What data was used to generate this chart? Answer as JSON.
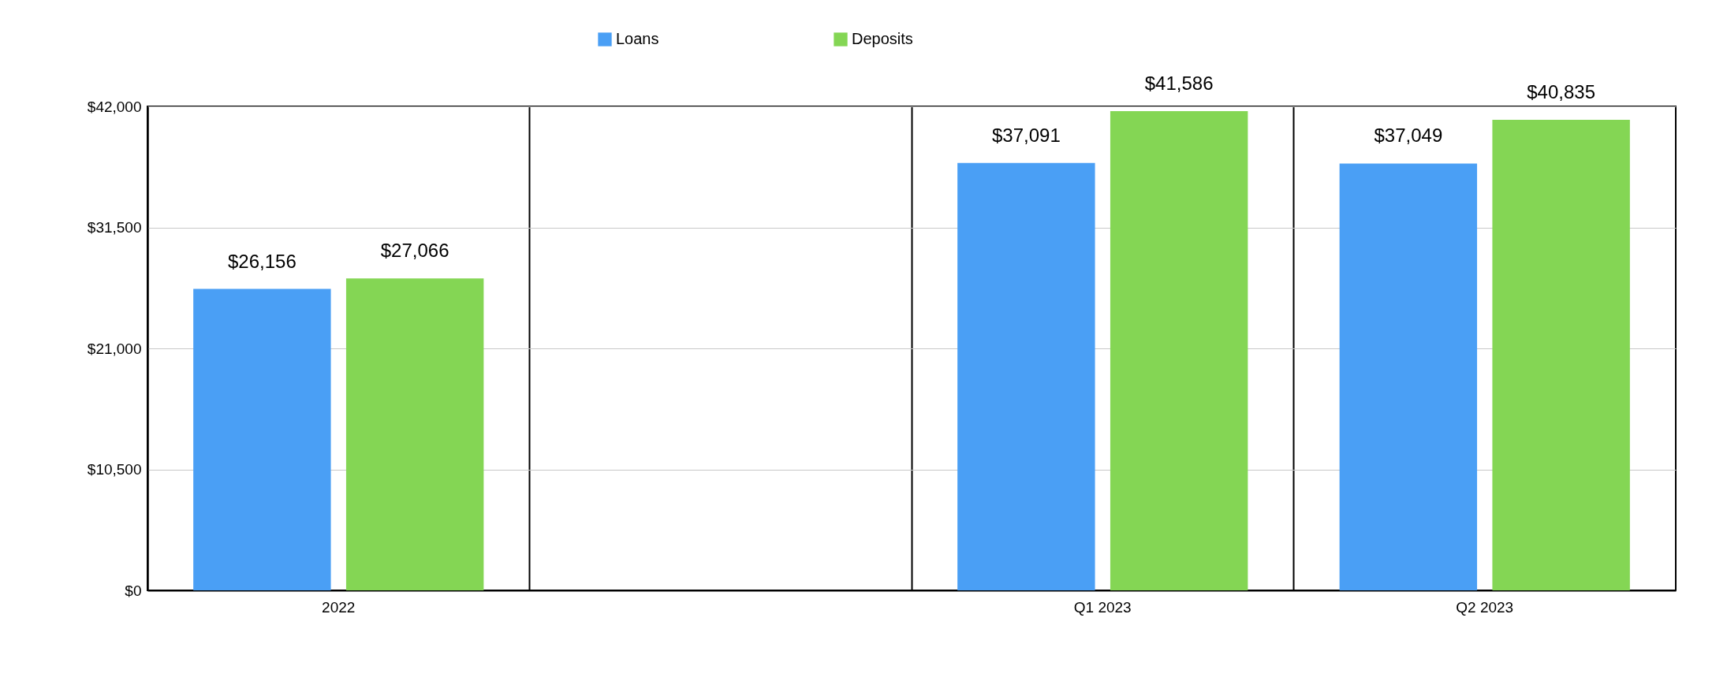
{
  "chart_data": {
    "type": "bar",
    "categories": [
      "2022",
      null,
      "Q1 2023",
      "Q2 2023"
    ],
    "series": [
      {
        "name": "Loans",
        "color": "#4a9ff5",
        "values": [
          26156,
          null,
          37091,
          37049
        ],
        "value_labels": [
          "$26,156",
          null,
          "$37,091",
          "$37,049"
        ]
      },
      {
        "name": "Deposits",
        "color": "#84d654",
        "values": [
          27066,
          null,
          41586,
          40835
        ],
        "value_labels": [
          "$27,066",
          null,
          "$41,586",
          "$40,835"
        ]
      }
    ],
    "ylim": [
      0,
      42000
    ],
    "yticks": [
      {
        "value": 0,
        "label": "$0"
      },
      {
        "value": 10500,
        "label": "$10,500"
      },
      {
        "value": 21000,
        "label": "$21,000"
      },
      {
        "value": 31500,
        "label": "$31,500"
      },
      {
        "value": 42000,
        "label": "$42,000"
      }
    ],
    "grid": true,
    "legend": "top"
  }
}
